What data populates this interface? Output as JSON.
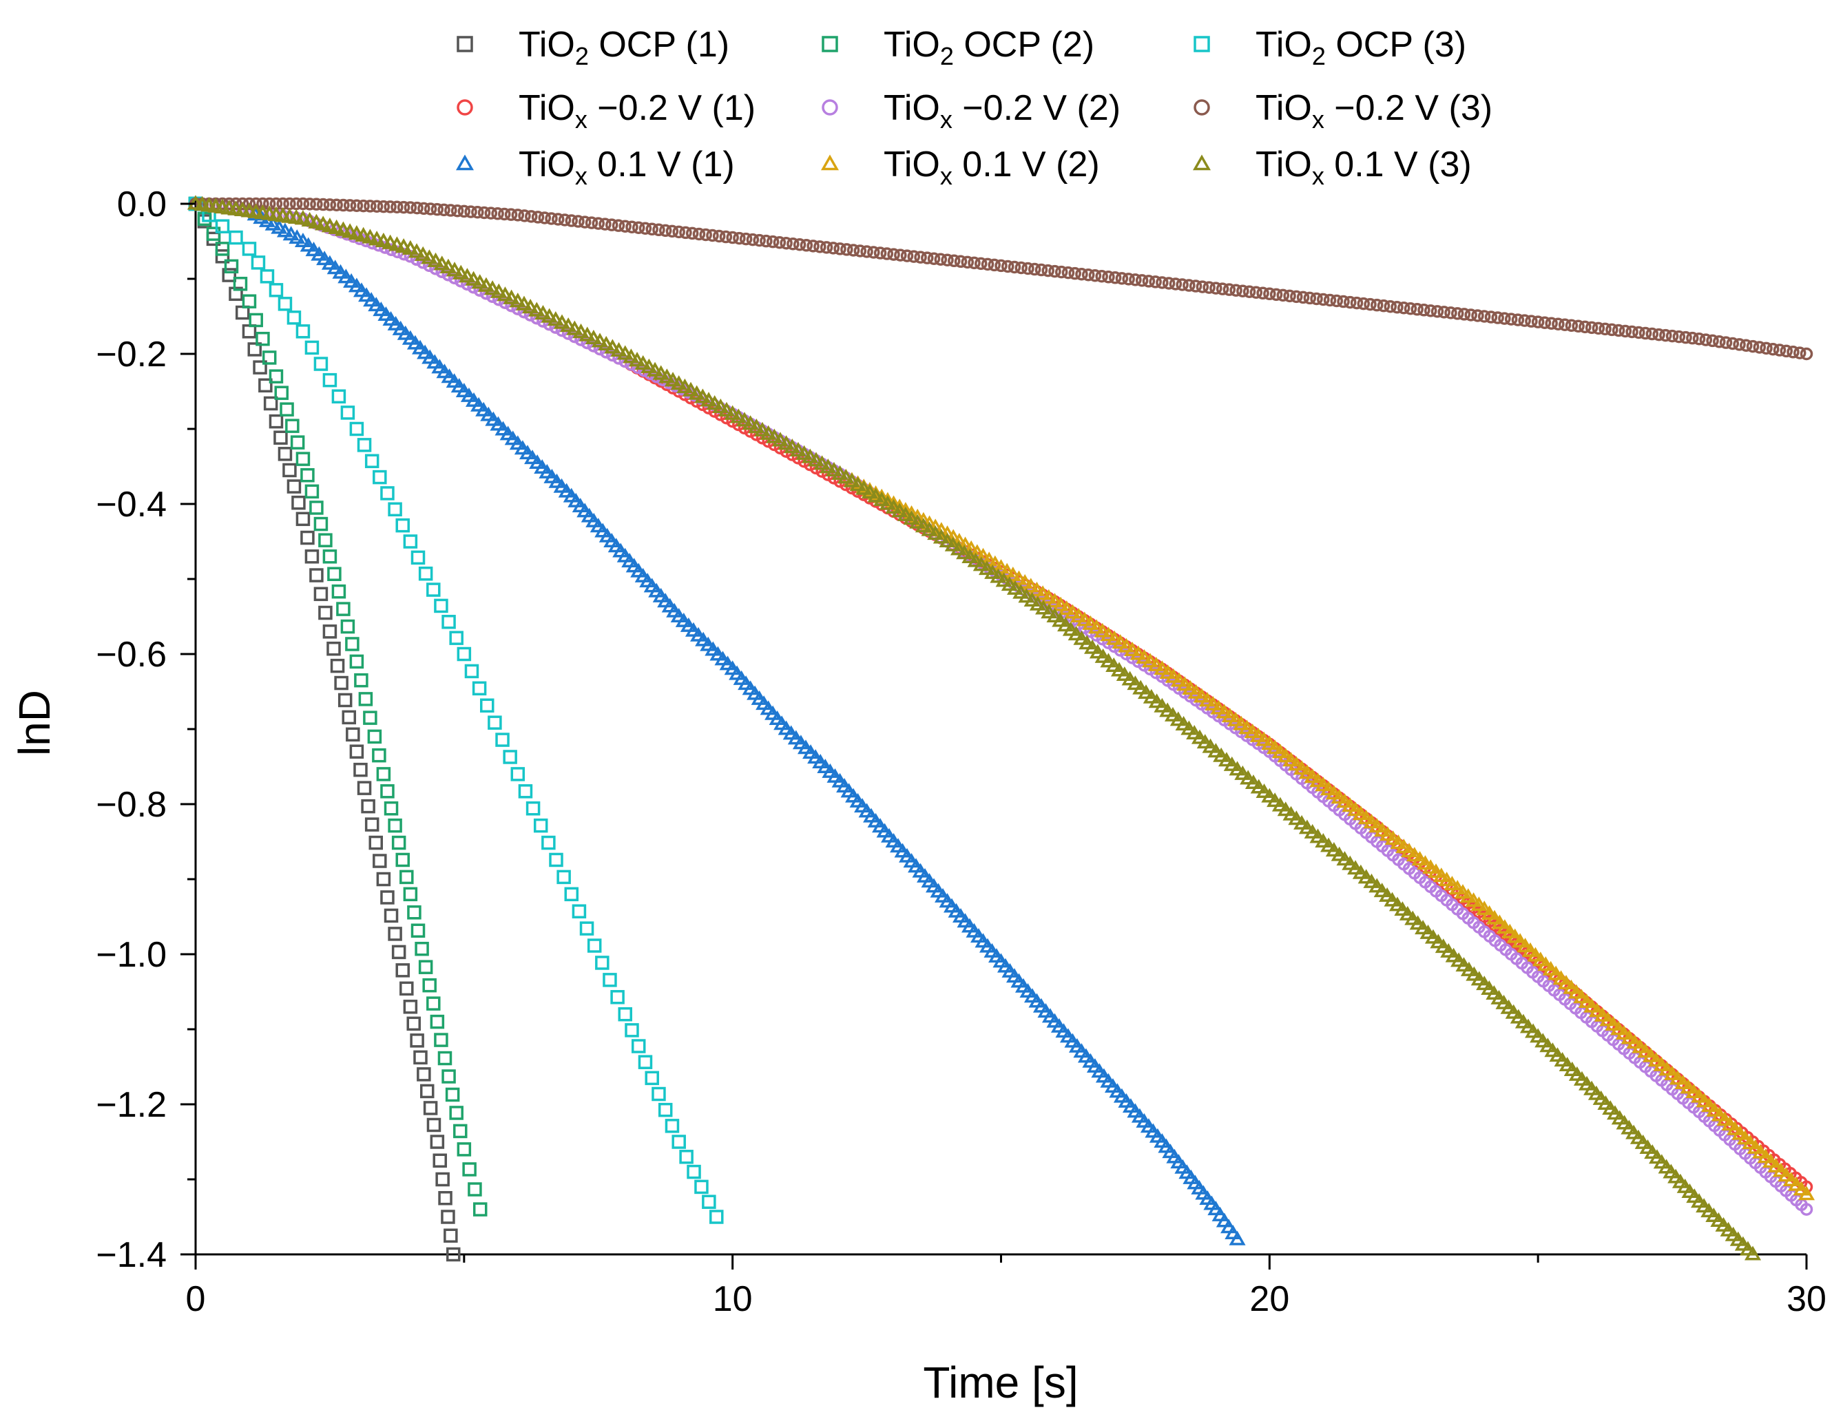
{
  "chart_data": {
    "type": "scatter",
    "title": "",
    "xlabel": "Time [s]",
    "ylabel": "lnD",
    "xlim": [
      0,
      30
    ],
    "ylim": [
      -1.4,
      0.0
    ],
    "x_ticks": [
      0,
      10,
      20,
      30
    ],
    "x_tick_labels": [
      "0",
      "10",
      "20",
      "30"
    ],
    "y_ticks": [
      0.0,
      -0.2,
      -0.4,
      -0.6,
      -0.8,
      -1.0,
      -1.2,
      -1.4
    ],
    "y_tick_labels": [
      "0.0",
      "−0.2",
      "−0.4",
      "−0.6",
      "−0.8",
      "−1.0",
      "−1.2",
      "−1.4"
    ],
    "grid": false,
    "legend_position": "top",
    "series": [
      {
        "name": "TiO2 OCP (1)",
        "label_main": "TiO",
        "label_sub": "2",
        "label_rest": " OCP (1)",
        "marker": "square",
        "color": "#555555",
        "x": [
          0,
          0.5,
          1,
          1.5,
          2,
          2.5,
          3,
          3.5,
          4,
          4.5,
          4.8
        ],
        "y": [
          0,
          -0.07,
          -0.17,
          -0.29,
          -0.42,
          -0.57,
          -0.73,
          -0.9,
          -1.07,
          -1.25,
          -1.4
        ]
      },
      {
        "name": "TiO2 OCP (2)",
        "label_main": "TiO",
        "label_sub": "2",
        "label_rest": " OCP (2)",
        "marker": "square",
        "color": "#1fa36b",
        "x": [
          0,
          0.5,
          1,
          1.5,
          2,
          2.5,
          3,
          3.5,
          4,
          4.5,
          5,
          5.3
        ],
        "y": [
          0,
          -0.06,
          -0.13,
          -0.23,
          -0.34,
          -0.47,
          -0.61,
          -0.76,
          -0.92,
          -1.09,
          -1.26,
          -1.34
        ]
      },
      {
        "name": "TiO2 OCP (3)",
        "label_main": "TiO",
        "label_sub": "2",
        "label_rest": " OCP (3)",
        "marker": "square",
        "color": "#17c5c8",
        "x": [
          0,
          1,
          2,
          3,
          4,
          5,
          6,
          7,
          8,
          9,
          9.7
        ],
        "y": [
          0,
          -0.06,
          -0.17,
          -0.3,
          -0.45,
          -0.6,
          -0.76,
          -0.92,
          -1.08,
          -1.25,
          -1.35
        ]
      },
      {
        "name": "TiOx −0.2 V (1)",
        "label_main": "TiO",
        "label_sub": "x",
        "label_rest": " −0.2 V (1)",
        "marker": "circle",
        "color": "#f04545",
        "x": [
          0,
          2,
          4,
          6,
          8,
          10,
          12,
          14,
          16,
          18,
          20,
          22,
          24,
          26,
          28,
          30
        ],
        "y": [
          0,
          -0.02,
          -0.07,
          -0.14,
          -0.21,
          -0.29,
          -0.37,
          -0.45,
          -0.53,
          -0.62,
          -0.72,
          -0.83,
          -0.95,
          -1.07,
          -1.19,
          -1.31
        ]
      },
      {
        "name": "TiOx −0.2 V (2)",
        "label_main": "TiO",
        "label_sub": "x",
        "label_rest": " −0.2 V (2)",
        "marker": "circle",
        "color": "#b77fe0",
        "x": [
          0,
          2,
          4,
          6,
          8,
          10,
          12,
          14,
          16,
          18,
          20,
          22,
          24,
          26,
          28,
          30
        ],
        "y": [
          0,
          -0.02,
          -0.07,
          -0.14,
          -0.21,
          -0.28,
          -0.36,
          -0.45,
          -0.54,
          -0.63,
          -0.73,
          -0.85,
          -0.97,
          -1.09,
          -1.21,
          -1.34
        ]
      },
      {
        "name": "TiOx −0.2 V (3)",
        "label_main": "TiO",
        "label_sub": "x",
        "label_rest": " −0.2 V (3)",
        "marker": "circle",
        "color": "#8a5a4e",
        "x": [
          0,
          2,
          4,
          6,
          8,
          10,
          12,
          14,
          16,
          18,
          20,
          22,
          24,
          26,
          28,
          30
        ],
        "y": [
          0,
          0,
          -0.005,
          -0.015,
          -0.03,
          -0.045,
          -0.06,
          -0.075,
          -0.09,
          -0.105,
          -0.12,
          -0.135,
          -0.15,
          -0.165,
          -0.18,
          -0.2
        ]
      },
      {
        "name": "TiOx 0.1 V (1)",
        "label_main": "TiO",
        "label_sub": "x",
        "label_rest": " 0.1 V (1)",
        "marker": "triangle",
        "color": "#1f78d1",
        "x": [
          0,
          1,
          2,
          3,
          4,
          5,
          6,
          7,
          8,
          9,
          10,
          11,
          12,
          13,
          14,
          15,
          16,
          17,
          18,
          19,
          19.4
        ],
        "y": [
          0,
          -0.01,
          -0.05,
          -0.11,
          -0.18,
          -0.25,
          -0.32,
          -0.39,
          -0.47,
          -0.55,
          -0.62,
          -0.7,
          -0.77,
          -0.85,
          -0.93,
          -1.01,
          -1.09,
          -1.17,
          -1.25,
          -1.34,
          -1.38
        ]
      },
      {
        "name": "TiOx 0.1 V (2)",
        "label_main": "TiO",
        "label_sub": "x",
        "label_rest": " 0.1 V (2)",
        "marker": "triangle",
        "color": "#d9a412",
        "x": [
          0,
          2,
          4,
          6,
          8,
          10,
          12,
          14,
          16,
          18,
          20,
          22,
          24,
          26,
          28,
          30
        ],
        "y": [
          0,
          -0.02,
          -0.06,
          -0.13,
          -0.2,
          -0.28,
          -0.36,
          -0.44,
          -0.53,
          -0.62,
          -0.72,
          -0.83,
          -0.94,
          -1.07,
          -1.19,
          -1.32
        ]
      },
      {
        "name": "TiOx 0.1 V (3)",
        "label_main": "TiO",
        "label_sub": "x",
        "label_rest": " 0.1 V (3)",
        "marker": "triangle",
        "color": "#8b8b1c",
        "x": [
          0,
          2,
          4,
          6,
          8,
          10,
          12,
          14,
          16,
          18,
          20,
          22,
          24,
          26,
          28,
          29
        ],
        "y": [
          0,
          -0.02,
          -0.06,
          -0.13,
          -0.2,
          -0.28,
          -0.36,
          -0.45,
          -0.55,
          -0.67,
          -0.79,
          -0.91,
          -1.04,
          -1.18,
          -1.33,
          -1.4
        ]
      }
    ]
  }
}
